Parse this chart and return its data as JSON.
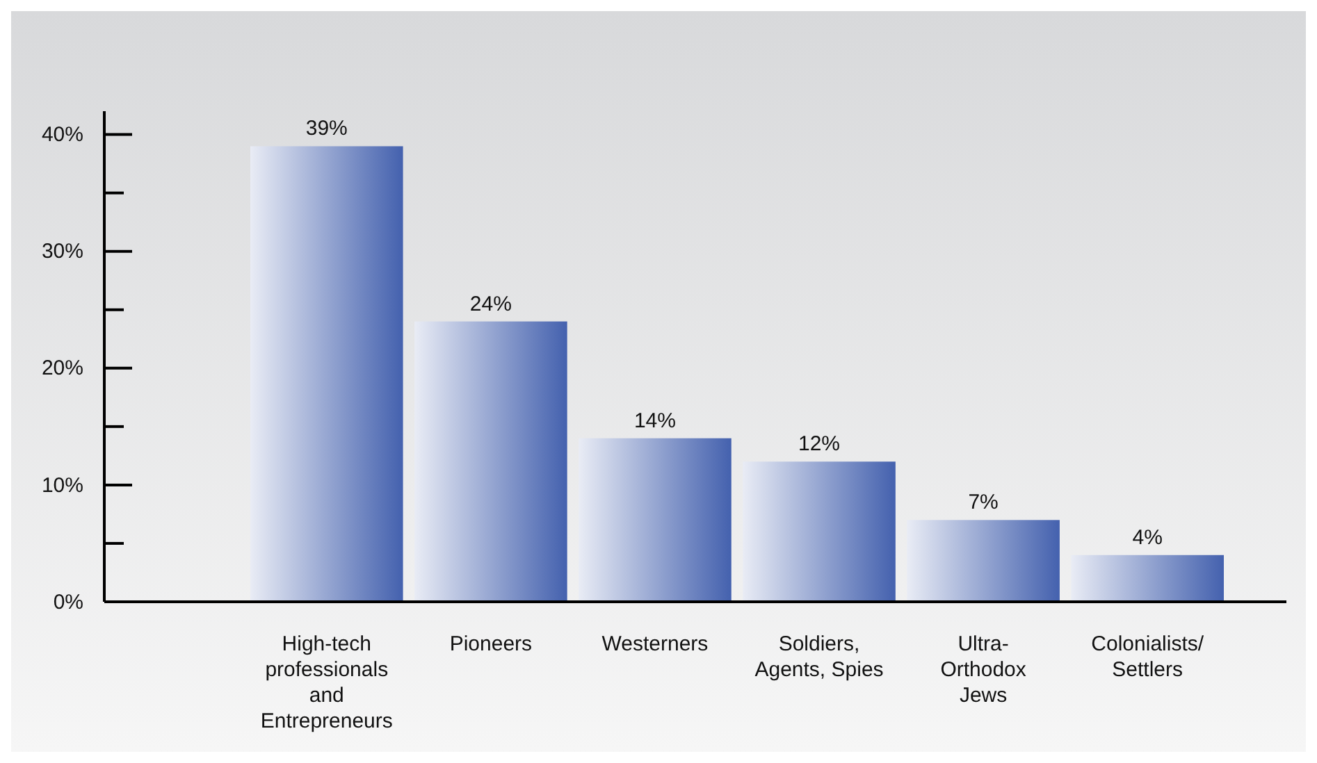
{
  "chart_data": {
    "type": "bar",
    "categories": [
      "High-tech\nprofessionals\nand\nEntrepreneurs",
      "Pioneers",
      "Westerners",
      "Soldiers,\nAgents, Spies",
      "Ultra-\nOrthodox\nJews",
      "Colonialists/\nSettlers"
    ],
    "values": [
      39,
      24,
      14,
      12,
      7,
      4
    ],
    "color": "#4461ae",
    "ylim": [
      0,
      42
    ],
    "yticks": [
      {
        "value": 0,
        "label": "0%"
      },
      {
        "value": 5,
        "label": null
      },
      {
        "value": 10,
        "label": "10%"
      },
      {
        "value": 15,
        "label": null
      },
      {
        "value": 20,
        "label": "20%"
      },
      {
        "value": 25,
        "label": null
      },
      {
        "value": 30,
        "label": "30%"
      },
      {
        "value": 35,
        "label": null
      },
      {
        "value": 40,
        "label": "40%"
      }
    ],
    "value_labels": [
      "39%",
      "24%",
      "14%",
      "12%",
      "7%",
      "4%"
    ],
    "grid": false
  }
}
